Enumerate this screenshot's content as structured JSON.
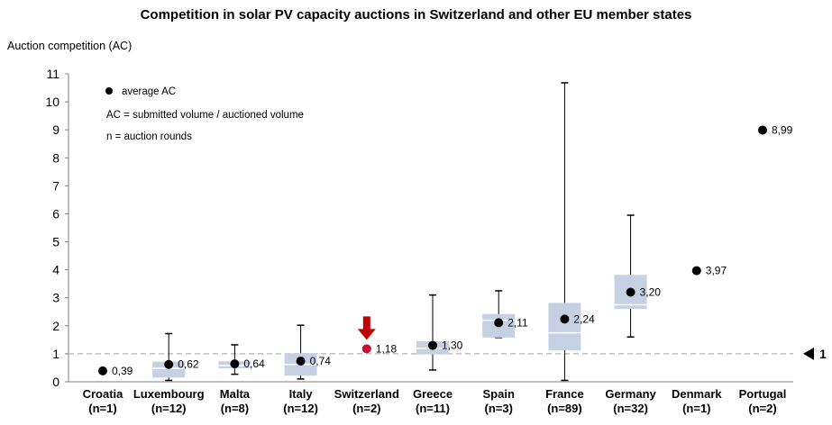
{
  "chart_data": {
    "type": "box",
    "title": "Competition in solar PV capacity auctions in Switzerland and other EU member  states",
    "ylabel": "Auction competition (AC)",
    "ylim": [
      0,
      11
    ],
    "yticks": [
      "0",
      "1",
      "2",
      "3",
      "4",
      "5",
      "6",
      "7",
      "8",
      "9",
      "10",
      "11"
    ],
    "grid": false,
    "reference_line": {
      "value": 1,
      "label": "1"
    },
    "highlight": {
      "category": "Switzerland",
      "color": "#c8102e",
      "arrow_color": "#c00000"
    },
    "colors": {
      "box": "#c5d1e3",
      "median": "#ffffff",
      "whisker": "#000000",
      "point": "#000000",
      "refline": "#bfbfbf"
    },
    "legend": {
      "marker_label": "average AC",
      "notes": [
        "AC = submitted volume / auctioned volume",
        "n = auction rounds"
      ]
    },
    "categories": [
      {
        "name": "Croatia",
        "n": "(n=1)",
        "avg": 0.39,
        "label": "0,39",
        "min": null,
        "q1": null,
        "median": null,
        "q3": null,
        "max": null
      },
      {
        "name": "Luxembourg",
        "n": "(n=12)",
        "avg": 0.62,
        "label": "0,62",
        "min": 0.05,
        "q1": 0.15,
        "median": 0.48,
        "q3": 0.72,
        "max": 1.72
      },
      {
        "name": "Malta",
        "n": "(n=8)",
        "avg": 0.64,
        "label": "0,64",
        "min": 0.27,
        "q1": 0.48,
        "median": 0.58,
        "q3": 0.73,
        "max": 1.32
      },
      {
        "name": "Italy",
        "n": "(n=12)",
        "avg": 0.74,
        "label": "0,74",
        "min": 0.1,
        "q1": 0.22,
        "median": 0.62,
        "q3": 1.02,
        "max": 2.02
      },
      {
        "name": "Switzerland",
        "n": "(n=2)",
        "avg": 1.18,
        "label": "1,18",
        "min": null,
        "q1": null,
        "median": null,
        "q3": null,
        "max": null
      },
      {
        "name": "Greece",
        "n": "(n=11)",
        "avg": 1.3,
        "label": "1,30",
        "min": 0.42,
        "q1": 0.98,
        "median": 1.2,
        "q3": 1.45,
        "max": 3.1
      },
      {
        "name": "Spain",
        "n": "(n=3)",
        "avg": 2.11,
        "label": "2,11",
        "min": 1.58,
        "q1": 1.58,
        "median": 2.2,
        "q3": 2.42,
        "max": 3.25
      },
      {
        "name": "France",
        "n": "(n=89)",
        "avg": 2.24,
        "label": "2,24",
        "min": 0.05,
        "q1": 1.12,
        "median": 1.75,
        "q3": 2.82,
        "max": 10.68
      },
      {
        "name": "Germany",
        "n": "(n=32)",
        "avg": 3.2,
        "label": "3,20",
        "min": 1.6,
        "q1": 2.6,
        "median": 2.75,
        "q3": 3.82,
        "max": 5.95
      },
      {
        "name": "Denmark",
        "n": "(n=1)",
        "avg": 3.97,
        "label": "3,97",
        "min": null,
        "q1": null,
        "median": null,
        "q3": null,
        "max": null
      },
      {
        "name": "Portugal",
        "n": "(n=2)",
        "avg": 8.99,
        "label": "8,99",
        "min": null,
        "q1": null,
        "median": null,
        "q3": null,
        "max": null
      }
    ]
  }
}
